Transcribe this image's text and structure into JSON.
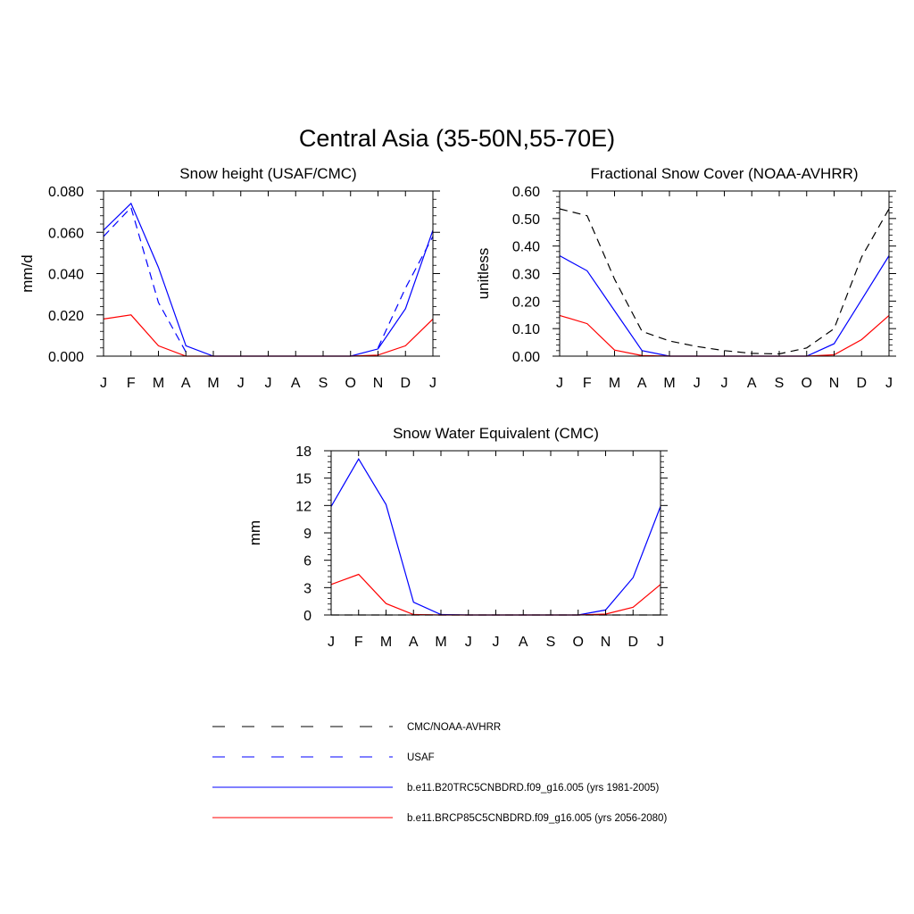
{
  "figure": {
    "title": "Central Asia (35-50N,55-70E)"
  },
  "legend": [
    {
      "label": "CMC/NOAA-AVHRR",
      "color": "#000000",
      "dash": "dashed"
    },
    {
      "label": "USAF",
      "color": "#0000ff",
      "dash": "dashed"
    },
    {
      "label": "b.e11.B20TRC5CNBDRD.f09_g16.005 (yrs 1981-2005)",
      "color": "#0000ff",
      "dash": "solid"
    },
    {
      "label": "b.e11.BRCP85C5CNBDRD.f09_g16.005 (yrs 2056-2080)",
      "color": "#ff0000",
      "dash": "solid"
    }
  ],
  "chart_data": [
    {
      "type": "line",
      "title": "Snow height (USAF/CMC)",
      "ylabel": "mm/d",
      "xlabel": "",
      "categories": [
        "J",
        "F",
        "M",
        "A",
        "M",
        "J",
        "J",
        "A",
        "S",
        "O",
        "N",
        "D",
        "J"
      ],
      "ylim": [
        0,
        0.08
      ],
      "yticks": [
        "0.000",
        "0.020",
        "0.040",
        "0.060",
        "0.080"
      ],
      "series": [
        {
          "name": "USAF",
          "color": "#0000ff",
          "dash": "dashed",
          "values": [
            0.058,
            0.072,
            0.026,
            0.002,
            null,
            null,
            null,
            null,
            null,
            null,
            0.004,
            0.033,
            0.058
          ]
        },
        {
          "name": "b.e11.B20TRC5CNBDRD.f09_g16.005 (yrs 1981-2005)",
          "color": "#0000ff",
          "dash": "solid",
          "values": [
            0.061,
            0.074,
            0.043,
            0.005,
            0.0,
            0.0,
            0.0,
            0.0,
            0.0,
            0.0,
            0.0035,
            0.023,
            0.061
          ]
        },
        {
          "name": "b.e11.BRCP85C5CNBDRD.f09_g16.005 (yrs 2056-2080)",
          "color": "#ff0000",
          "dash": "solid",
          "values": [
            0.018,
            0.02,
            0.005,
            0.0,
            0.0,
            0.0,
            0.0,
            0.0,
            0.0,
            0.0,
            0.0005,
            0.005,
            0.018
          ]
        }
      ]
    },
    {
      "type": "line",
      "title": "Fractional Snow Cover (NOAA-AVHRR)",
      "ylabel": "unitless",
      "xlabel": "",
      "categories": [
        "J",
        "F",
        "M",
        "A",
        "M",
        "J",
        "J",
        "A",
        "S",
        "O",
        "N",
        "D",
        "J"
      ],
      "ylim": [
        0,
        0.6
      ],
      "yticks": [
        "0.00",
        "0.10",
        "0.20",
        "0.30",
        "0.40",
        "0.50",
        "0.60"
      ],
      "series": [
        {
          "name": "CMC/NOAA-AVHRR",
          "color": "#000000",
          "dash": "dashed",
          "values": [
            0.535,
            0.51,
            0.28,
            0.09,
            0.055,
            0.035,
            0.02,
            0.01,
            0.008,
            0.03,
            0.1,
            0.36,
            0.535
          ]
        },
        {
          "name": "b.e11.B20TRC5CNBDRD.f09_g16.005 (yrs 1981-2005)",
          "color": "#0000ff",
          "dash": "solid",
          "values": [
            0.365,
            0.31,
            0.165,
            0.02,
            0.0,
            0.0,
            0.0,
            0.0,
            0.0,
            0.0,
            0.045,
            0.205,
            0.365
          ]
        },
        {
          "name": "b.e11.BRCP85C5CNBDRD.f09_g16.005 (yrs 2056-2080)",
          "color": "#ff0000",
          "dash": "solid",
          "values": [
            0.148,
            0.118,
            0.022,
            0.002,
            0.0,
            0.0,
            0.0,
            0.0,
            0.0,
            0.0,
            0.005,
            0.06,
            0.148
          ]
        }
      ]
    },
    {
      "type": "line",
      "title": "Snow Water Equivalent (CMC)",
      "ylabel": "mm",
      "xlabel": "",
      "categories": [
        "J",
        "F",
        "M",
        "A",
        "M",
        "J",
        "J",
        "A",
        "S",
        "O",
        "N",
        "D",
        "J"
      ],
      "ylim": [
        0,
        18
      ],
      "yticks": [
        "0",
        "3",
        "6",
        "9",
        "12",
        "15",
        "18"
      ],
      "series": [
        {
          "name": "CMC/NOAA-AVHRR",
          "color": "#000000",
          "dash": "dashed",
          "values": [
            0,
            0,
            0,
            0,
            0,
            0,
            0,
            0,
            0,
            0,
            0,
            0,
            0
          ]
        },
        {
          "name": "b.e11.B20TRC5CNBDRD.f09_g16.005 (yrs 1981-2005)",
          "color": "#0000ff",
          "dash": "solid",
          "values": [
            11.9,
            17.1,
            12.1,
            1.4,
            0.05,
            0.0,
            0.0,
            0.0,
            0.0,
            0.0,
            0.55,
            4.1,
            11.9
          ]
        },
        {
          "name": "b.e11.BRCP85C5CNBDRD.f09_g16.005 (yrs 2056-2080)",
          "color": "#ff0000",
          "dash": "solid",
          "values": [
            3.35,
            4.45,
            1.25,
            0.05,
            0.0,
            0.0,
            0.0,
            0.0,
            0.0,
            0.0,
            0.1,
            0.85,
            3.35
          ]
        }
      ]
    }
  ]
}
